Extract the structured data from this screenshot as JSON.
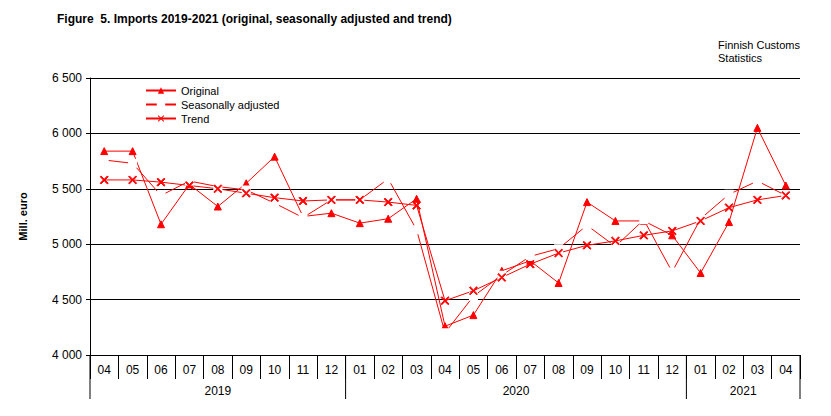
{
  "chart_data": {
    "type": "line",
    "title": "Figure  5. Imports 2019-2021 (original, seasonally adjusted and trend)",
    "source": "Finnish Customs Statistics",
    "y_label": "Mill. euro",
    "categories": [
      "04",
      "05",
      "06",
      "07",
      "08",
      "09",
      "10",
      "11",
      "12",
      "01",
      "02",
      "03",
      "04",
      "05",
      "06",
      "07",
      "08",
      "09",
      "10",
      "11",
      "12",
      "01",
      "02",
      "03",
      "04"
    ],
    "category_years": [
      "2019",
      "2019",
      "2019",
      "2019",
      "2019",
      "2019",
      "2019",
      "2019",
      "2019",
      "2020",
      "2020",
      "2020",
      "2020",
      "2020",
      "2020",
      "2020",
      "2020",
      "2020",
      "2020",
      "2020",
      "2020",
      "2021",
      "2021",
      "2021",
      "2021"
    ],
    "series": [
      {
        "name": "Original",
        "color": "#ff0000",
        "marker": "triangle",
        "values": [
          5840,
          5840,
          5180,
          5540,
          5340,
          5550,
          5790,
          5250,
          5280,
          5190,
          5230,
          5410,
          4260,
          4360,
          4760,
          4850,
          4650,
          5380,
          5210,
          5210,
          5080,
          4740,
          5200,
          6050,
          5530
        ]
      },
      {
        "name": "Seasonally adjusted",
        "color": "#ff0000",
        "marker": "open_square",
        "values": [
          5760,
          5730,
          5440,
          5570,
          5520,
          5490,
          5370,
          5240,
          5400,
          5400,
          5590,
          5130,
          4200,
          4530,
          4720,
          4890,
          4960,
          5170,
          4980,
          5220,
          4750,
          5230,
          5450,
          5570,
          5440
        ]
      },
      {
        "name": "Trend",
        "color": "#ff0000",
        "marker": "x",
        "values": [
          5580,
          5580,
          5560,
          5530,
          5500,
          5460,
          5420,
          5390,
          5400,
          5400,
          5380,
          5350,
          4490,
          4580,
          4700,
          4820,
          4920,
          4990,
          5030,
          5080,
          5120,
          5210,
          5330,
          5400,
          5440
        ]
      }
    ],
    "ylim": [
      4000,
      6500
    ],
    "yticks": [
      {
        "value": 4000,
        "label": "4 000"
      },
      {
        "value": 4500,
        "label": "4 500"
      },
      {
        "value": 5000,
        "label": "5 000"
      },
      {
        "value": 5500,
        "label": "5 500"
      },
      {
        "value": 6000,
        "label": "6 000"
      },
      {
        "value": 6500,
        "label": "6 500"
      }
    ],
    "grid": true,
    "legend": "top-left"
  }
}
